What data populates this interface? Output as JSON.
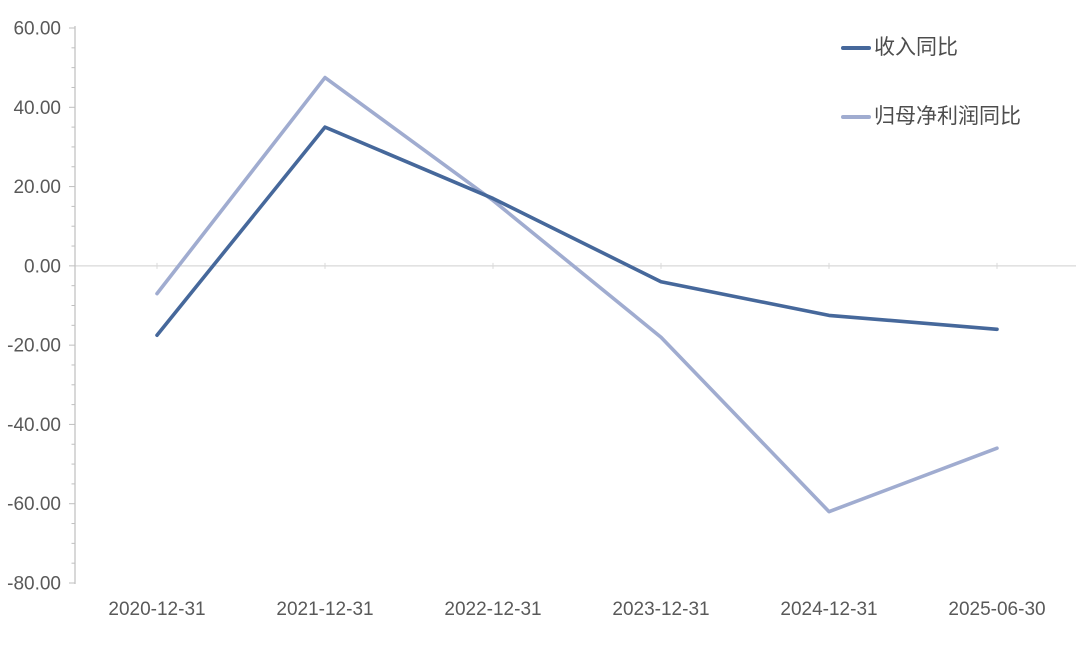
{
  "chart_data": {
    "type": "line",
    "title": "",
    "xlabel": "",
    "ylabel": "",
    "categories": [
      "2020-12-31",
      "2021-12-31",
      "2022-12-31",
      "2023-12-31",
      "2024-12-31",
      "2025-06-30"
    ],
    "series": [
      {
        "name": "收入同比",
        "color": "#46689B",
        "values": [
          -17.5,
          35.0,
          17.0,
          -4.0,
          -12.5,
          -16.0
        ]
      },
      {
        "name": "归母净利润同比",
        "color": "#A0ACD0",
        "values": [
          -7.0,
          47.5,
          16.5,
          -18.0,
          -62.0,
          -46.0
        ]
      }
    ],
    "ylim": [
      -80,
      60
    ],
    "ytick_step": 20,
    "ytick_minor_step": 5,
    "ytick_labels": [
      "60.00",
      "40.00",
      "20.00",
      "0.00",
      "-20.00",
      "-40.00",
      "-60.00",
      "-80.00"
    ],
    "grid": "zero-line-only",
    "legend_position": "top-right"
  },
  "colors": {
    "axis_line": "#BFBFBF",
    "zero_gridline": "#D9D9D9",
    "tick": "#BFBFBF",
    "axis_text": "#595959",
    "legend_text": "#4d4d4d",
    "background": "#FFFFFF"
  }
}
